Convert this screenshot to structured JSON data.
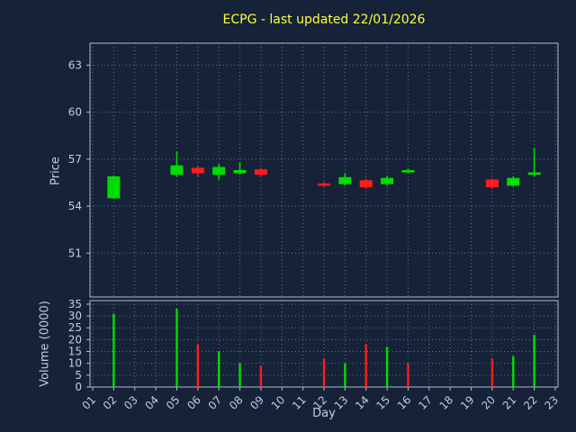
{
  "chart_data": {
    "type": "candlestick",
    "title": "ECPG - last updated 22/01/2026",
    "colors": {
      "background": "#152238",
      "up": "#00dd00",
      "down": "#ff1c1c",
      "grid": "#73839b",
      "spine": "#aebcd6",
      "tick_label": "#c3cddf",
      "title": "#ffff3c"
    },
    "x_axis": {
      "label": "Day",
      "ticks": [
        "01",
        "02",
        "03",
        "04",
        "05",
        "06",
        "07",
        "08",
        "09",
        "10",
        "11",
        "12",
        "13",
        "14",
        "15",
        "16",
        "17",
        "18",
        "19",
        "20",
        "21",
        "22",
        "23"
      ]
    },
    "price_axis": {
      "label": "Price",
      "ticks": [
        51,
        54,
        57,
        60,
        63
      ],
      "range": [
        48.2,
        64.4
      ]
    },
    "volume_axis": {
      "label": "Volume (0000)",
      "ticks": [
        0,
        5,
        10,
        15,
        20,
        25,
        30,
        35
      ],
      "range": [
        0,
        36.5
      ]
    },
    "candles": [
      {
        "day": 2,
        "open": 54.5,
        "high": 55.95,
        "low": 54.45,
        "close": 55.9,
        "dir": "up",
        "volume": 31,
        "volume_dir": "up"
      },
      {
        "day": 5,
        "open": 56.0,
        "high": 57.5,
        "low": 55.9,
        "close": 56.6,
        "dir": "up",
        "volume": 33,
        "volume_dir": "up"
      },
      {
        "day": 6,
        "open": 56.45,
        "high": 56.55,
        "low": 55.9,
        "close": 56.1,
        "dir": "down",
        "volume": 18,
        "volume_dir": "down"
      },
      {
        "day": 7,
        "open": 56.0,
        "high": 56.7,
        "low": 55.7,
        "close": 56.5,
        "dir": "up",
        "volume": 15,
        "volume_dir": "up"
      },
      {
        "day": 8,
        "open": 56.1,
        "high": 56.8,
        "low": 56.0,
        "close": 56.3,
        "dir": "up",
        "volume": 10,
        "volume_dir": "up"
      },
      {
        "day": 9,
        "open": 56.35,
        "high": 56.45,
        "low": 55.9,
        "close": 56.0,
        "dir": "down",
        "volume": 9,
        "volume_dir": "down"
      },
      {
        "day": 12,
        "open": 55.45,
        "high": 55.55,
        "low": 55.25,
        "close": 55.3,
        "dir": "down",
        "volume": 12,
        "volume_dir": "down"
      },
      {
        "day": 13,
        "open": 55.4,
        "high": 56.1,
        "low": 55.3,
        "close": 55.85,
        "dir": "up",
        "volume": 10,
        "volume_dir": "up"
      },
      {
        "day": 14,
        "open": 55.65,
        "high": 55.75,
        "low": 55.1,
        "close": 55.2,
        "dir": "down",
        "volume": 18,
        "volume_dir": "down"
      },
      {
        "day": 15,
        "open": 55.4,
        "high": 55.95,
        "low": 55.3,
        "close": 55.8,
        "dir": "up",
        "volume": 17,
        "volume_dir": "up"
      },
      {
        "day": 16,
        "open": 56.15,
        "high": 56.4,
        "low": 56.1,
        "close": 56.3,
        "dir": "up",
        "volume": 10,
        "volume_dir": "down"
      },
      {
        "day": 20,
        "open": 55.7,
        "high": 55.75,
        "low": 55.1,
        "close": 55.2,
        "dir": "down",
        "volume": 12,
        "volume_dir": "down"
      },
      {
        "day": 21,
        "open": 55.3,
        "high": 55.9,
        "low": 55.25,
        "close": 55.8,
        "dir": "up",
        "volume": 13,
        "volume_dir": "up"
      },
      {
        "day": 22,
        "open": 56.0,
        "high": 57.7,
        "low": 55.9,
        "close": 56.15,
        "dir": "up",
        "volume": 22,
        "volume_dir": "up"
      }
    ]
  }
}
